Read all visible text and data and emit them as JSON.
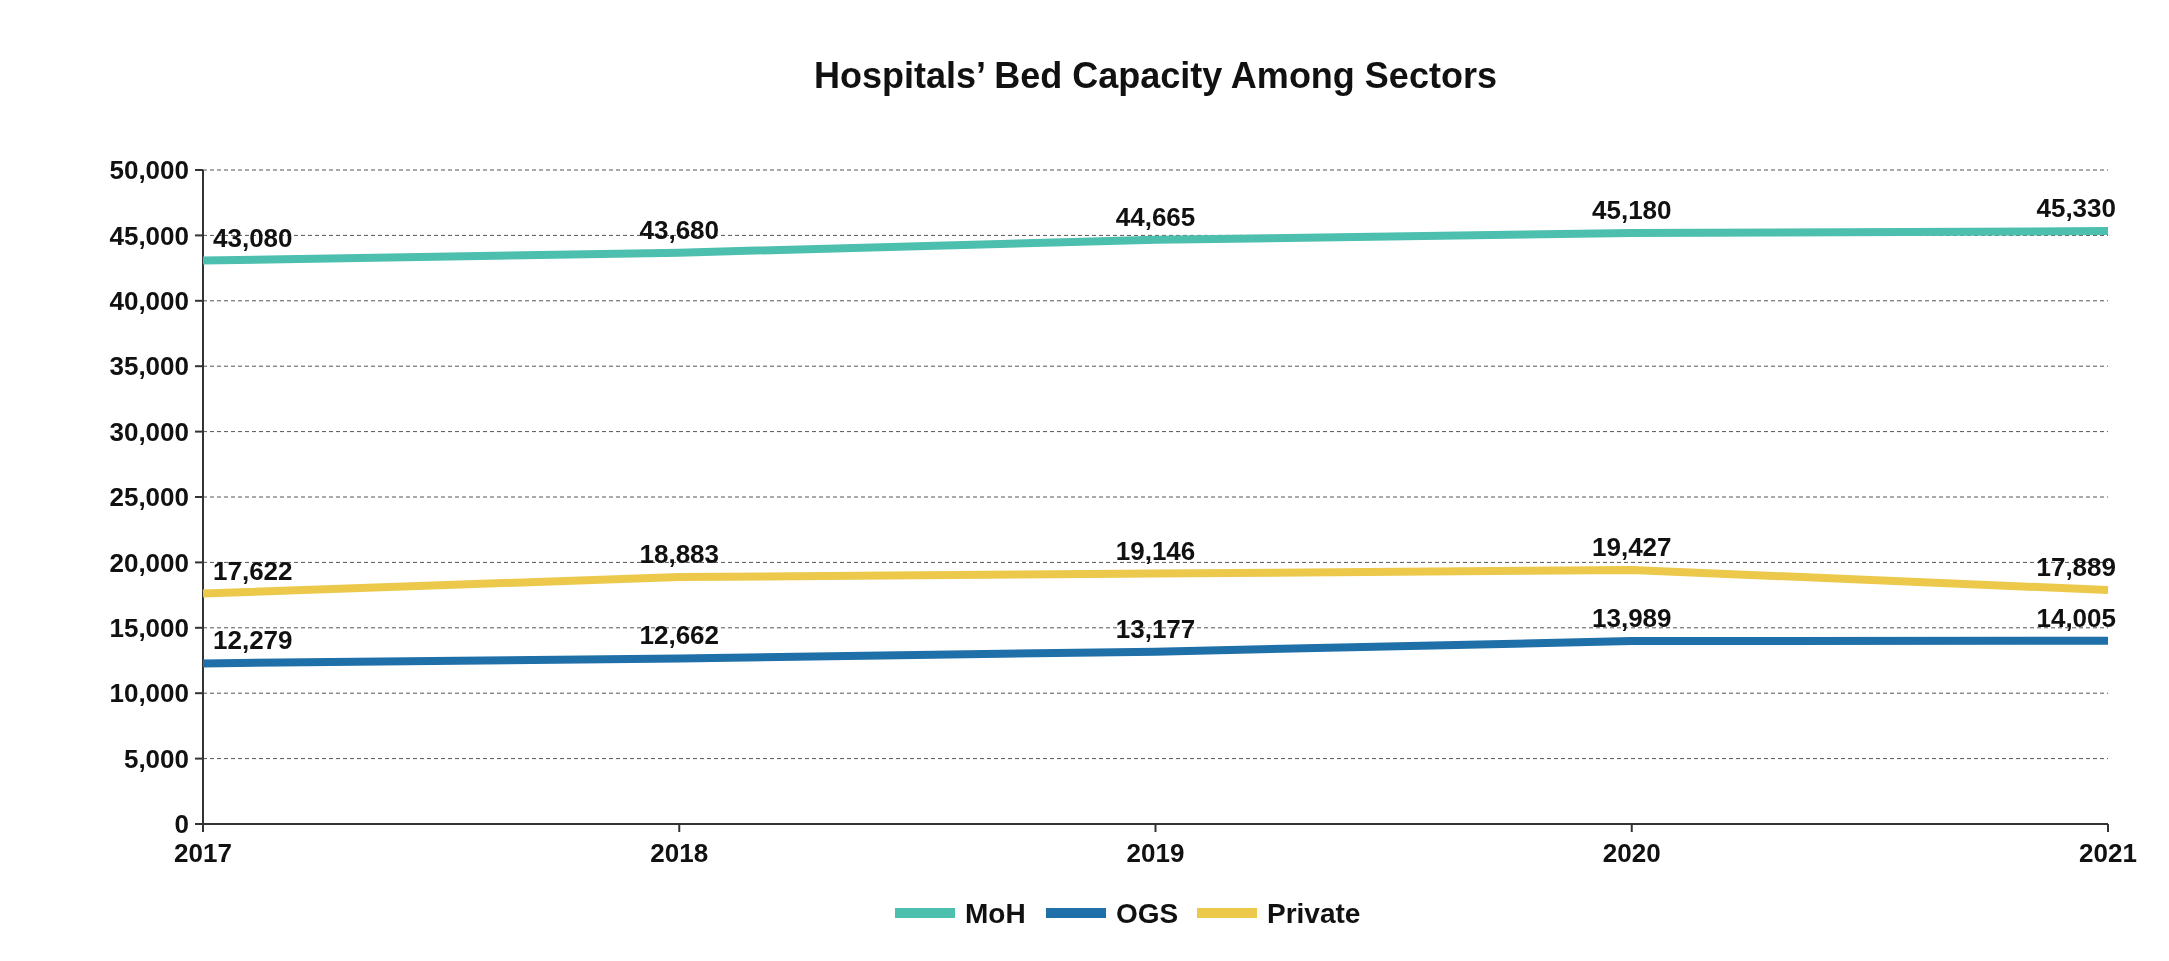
{
  "chart_data": {
    "type": "line",
    "title": "Hospitals’ Bed Capacity Among Sectors",
    "categories": [
      "2017",
      "2018",
      "2019",
      "2020",
      "2021"
    ],
    "series": [
      {
        "name": "MoH",
        "color": "#4dbfae",
        "values": [
          43080,
          43680,
          44665,
          45180,
          45330
        ],
        "value_labels": [
          "43,080",
          "43,680",
          "44,665",
          "45,180",
          "45,330"
        ]
      },
      {
        "name": "OGS",
        "color": "#1f6fa8",
        "values": [
          12279,
          12662,
          13177,
          13989,
          14005
        ],
        "value_labels": [
          "12,279",
          "12,662",
          "13,177",
          "13,989",
          "14,005"
        ]
      },
      {
        "name": "Private",
        "color": "#ecc94b",
        "values": [
          17622,
          18883,
          19146,
          19427,
          17889
        ],
        "value_labels": [
          "17,622",
          "18,883",
          "19,146",
          "19,427",
          "17,889"
        ]
      }
    ],
    "ylim": [
      0,
      50000
    ],
    "yticks": [
      {
        "value": 0,
        "label": "0"
      },
      {
        "value": 5000,
        "label": "5,000"
      },
      {
        "value": 10000,
        "label": "10,000"
      },
      {
        "value": 15000,
        "label": "15,000"
      },
      {
        "value": 20000,
        "label": "20,000"
      },
      {
        "value": 25000,
        "label": "25,000"
      },
      {
        "value": 30000,
        "label": "30,000"
      },
      {
        "value": 35000,
        "label": "35,000"
      },
      {
        "value": 40000,
        "label": "40,000"
      },
      {
        "value": 45000,
        "label": "45,000"
      },
      {
        "value": 50000,
        "label": "50,000"
      }
    ],
    "grid": "y",
    "legend": "bottom",
    "marker": "none",
    "line_style": "solid"
  }
}
